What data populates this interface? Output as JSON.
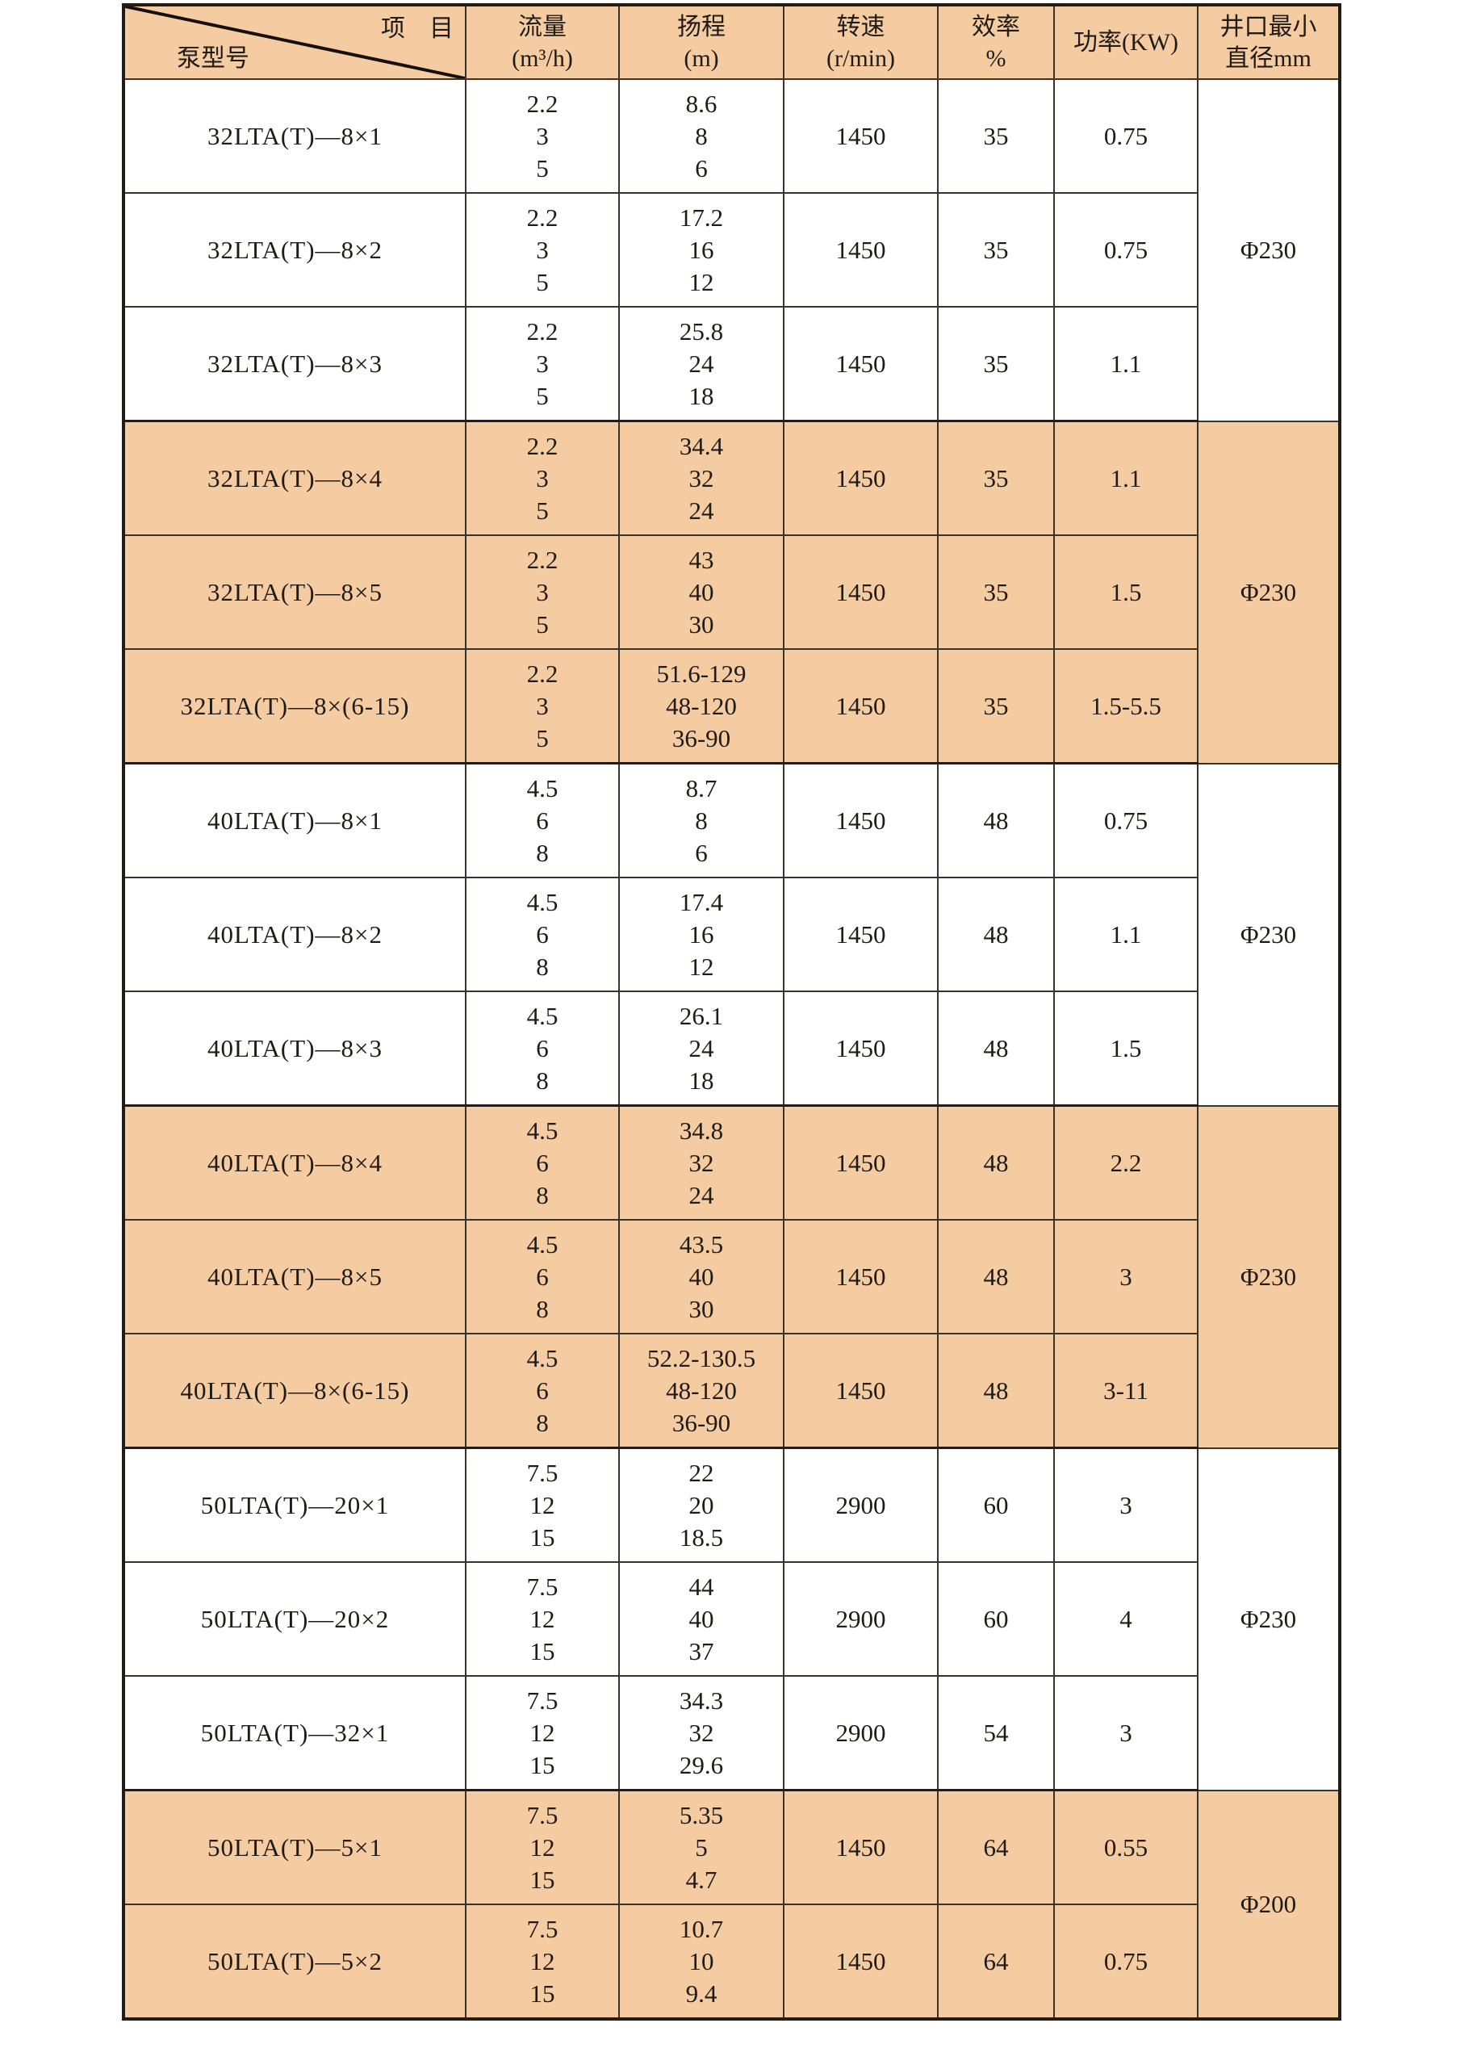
{
  "colors": {
    "row_shaded": "#f5cba2",
    "border_dark": "#231c14",
    "text": "#1f1b16"
  },
  "table": {
    "corner": {
      "item_label": "项　目",
      "model_label": "泵型号"
    },
    "headers": {
      "flow": [
        "流量",
        "(m³/h)"
      ],
      "head": [
        "扬程",
        "(m)"
      ],
      "speed": [
        "转速",
        "(r/min)"
      ],
      "efficiency": [
        "效率",
        "%"
      ],
      "power": [
        "功率(KW)"
      ],
      "well": [
        "井口最小",
        "直径mm"
      ]
    },
    "rows": [
      {
        "model": "32LTA(T)—8×1",
        "flow": [
          "2.2",
          "3",
          "5"
        ],
        "head": [
          "8.6",
          "8",
          "6"
        ],
        "speed": "1450",
        "eff": "35",
        "power": "0.75",
        "shaded": false,
        "well": "Φ230",
        "well_span": 3
      },
      {
        "model": "32LTA(T)—8×2",
        "flow": [
          "2.2",
          "3",
          "5"
        ],
        "head": [
          "17.2",
          "16",
          "12"
        ],
        "speed": "1450",
        "eff": "35",
        "power": "0.75",
        "shaded": false
      },
      {
        "model": "32LTA(T)—8×3",
        "flow": [
          "2.2",
          "3",
          "5"
        ],
        "head": [
          "25.8",
          "24",
          "18"
        ],
        "speed": "1450",
        "eff": "35",
        "power": "1.1",
        "shaded": false
      },
      {
        "model": "32LTA(T)—8×4",
        "flow": [
          "2.2",
          "3",
          "5"
        ],
        "head": [
          "34.4",
          "32",
          "24"
        ],
        "speed": "1450",
        "eff": "35",
        "power": "1.1",
        "shaded": true,
        "well": "Φ230",
        "well_span": 3
      },
      {
        "model": "32LTA(T)—8×5",
        "flow": [
          "2.2",
          "3",
          "5"
        ],
        "head": [
          "43",
          "40",
          "30"
        ],
        "speed": "1450",
        "eff": "35",
        "power": "1.5",
        "shaded": true
      },
      {
        "model": "32LTA(T)—8×(6-15)",
        "flow": [
          "2.2",
          "3",
          "5"
        ],
        "head": [
          "51.6-129",
          "48-120",
          "36-90"
        ],
        "speed": "1450",
        "eff": "35",
        "power": "1.5-5.5",
        "shaded": true
      },
      {
        "model": "40LTA(T)—8×1",
        "flow": [
          "4.5",
          "6",
          "8"
        ],
        "head": [
          "8.7",
          "8",
          "6"
        ],
        "speed": "1450",
        "eff": "48",
        "power": "0.75",
        "shaded": false,
        "well": "Φ230",
        "well_span": 3
      },
      {
        "model": "40LTA(T)—8×2",
        "flow": [
          "4.5",
          "6",
          "8"
        ],
        "head": [
          "17.4",
          "16",
          "12"
        ],
        "speed": "1450",
        "eff": "48",
        "power": "1.1",
        "shaded": false
      },
      {
        "model": "40LTA(T)—8×3",
        "flow": [
          "4.5",
          "6",
          "8"
        ],
        "head": [
          "26.1",
          "24",
          "18"
        ],
        "speed": "1450",
        "eff": "48",
        "power": "1.5",
        "shaded": false
      },
      {
        "model": "40LTA(T)—8×4",
        "flow": [
          "4.5",
          "6",
          "8"
        ],
        "head": [
          "34.8",
          "32",
          "24"
        ],
        "speed": "1450",
        "eff": "48",
        "power": "2.2",
        "shaded": true,
        "well": "Φ230",
        "well_span": 3
      },
      {
        "model": "40LTA(T)—8×5",
        "flow": [
          "4.5",
          "6",
          "8"
        ],
        "head": [
          "43.5",
          "40",
          "30"
        ],
        "speed": "1450",
        "eff": "48",
        "power": "3",
        "shaded": true
      },
      {
        "model": "40LTA(T)—8×(6-15)",
        "flow": [
          "4.5",
          "6",
          "8"
        ],
        "head": [
          "52.2-130.5",
          "48-120",
          "36-90"
        ],
        "speed": "1450",
        "eff": "48",
        "power": "3-11",
        "shaded": true
      },
      {
        "model": "50LTA(T)—20×1",
        "flow": [
          "7.5",
          "12",
          "15"
        ],
        "head": [
          "22",
          "20",
          "18.5"
        ],
        "speed": "2900",
        "eff": "60",
        "power": "3",
        "shaded": false,
        "well": "Φ230",
        "well_span": 3
      },
      {
        "model": "50LTA(T)—20×2",
        "flow": [
          "7.5",
          "12",
          "15"
        ],
        "head": [
          "44",
          "40",
          "37"
        ],
        "speed": "2900",
        "eff": "60",
        "power": "4",
        "shaded": false
      },
      {
        "model": "50LTA(T)—32×1",
        "flow": [
          "7.5",
          "12",
          "15"
        ],
        "head": [
          "34.3",
          "32",
          "29.6"
        ],
        "speed": "2900",
        "eff": "54",
        "power": "3",
        "shaded": false
      },
      {
        "model": "50LTA(T)—5×1",
        "flow": [
          "7.5",
          "12",
          "15"
        ],
        "head": [
          "5.35",
          "5",
          "4.7"
        ],
        "speed": "1450",
        "eff": "64",
        "power": "0.55",
        "shaded": true,
        "well": "Φ200",
        "well_span": 2
      },
      {
        "model": "50LTA(T)—5×2",
        "flow": [
          "7.5",
          "12",
          "15"
        ],
        "head": [
          "10.7",
          "10",
          "9.4"
        ],
        "speed": "1450",
        "eff": "64",
        "power": "0.75",
        "shaded": true
      }
    ]
  }
}
